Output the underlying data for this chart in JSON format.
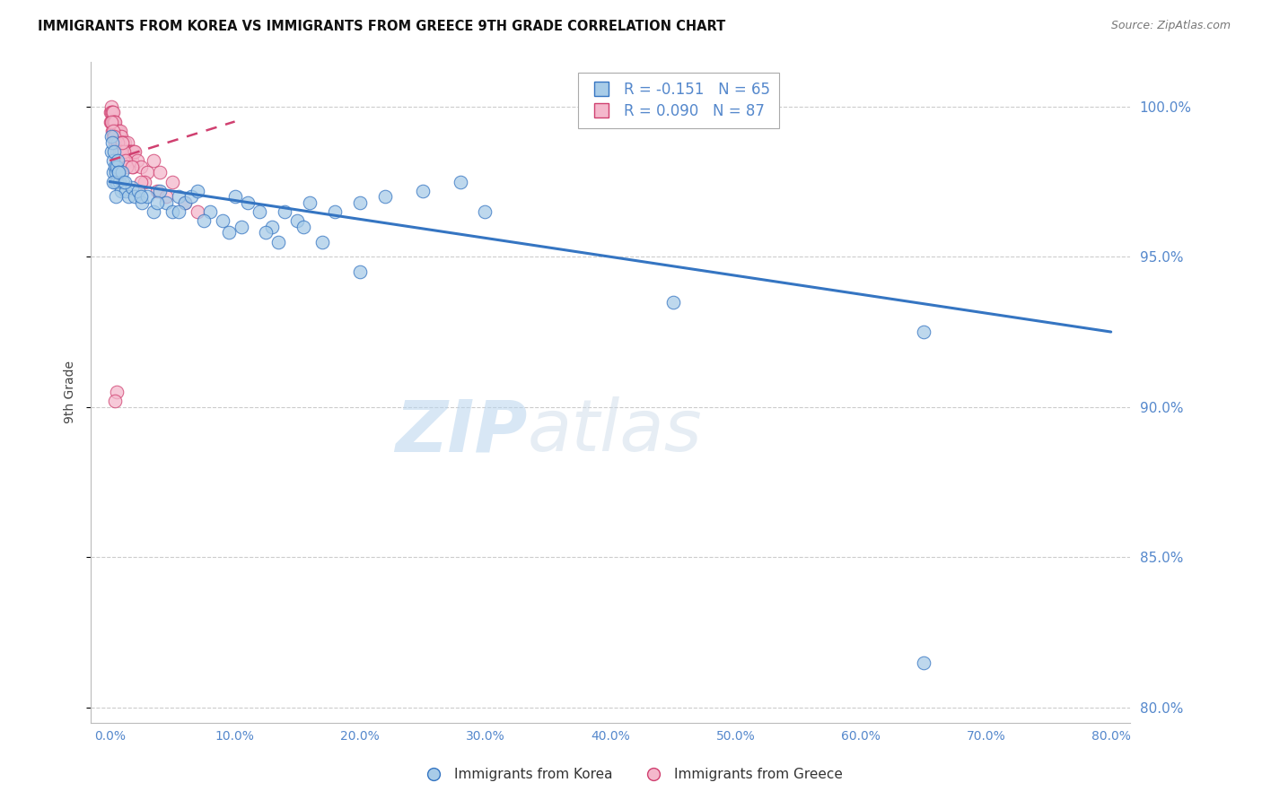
{
  "title": "IMMIGRANTS FROM KOREA VS IMMIGRANTS FROM GREECE 9TH GRADE CORRELATION CHART",
  "source": "Source: ZipAtlas.com",
  "ylabel_left": "9th Grade",
  "xlim": [
    0.0,
    80.0
  ],
  "ylim": [
    79.5,
    101.5
  ],
  "korea_R": -0.151,
  "korea_N": 65,
  "greece_R": 0.09,
  "greece_N": 87,
  "korea_color": "#a8cce8",
  "greece_color": "#f4b8cc",
  "korea_trend_color": "#3575c2",
  "greece_trend_color": "#d04070",
  "watermark_zip": "ZIP",
  "watermark_atlas": "atlas",
  "legend_korea": "R = -0.151   N = 65",
  "legend_greece": "R = 0.090   N = 87",
  "korea_x": [
    0.1,
    0.15,
    0.2,
    0.25,
    0.3,
    0.35,
    0.4,
    0.45,
    0.5,
    0.55,
    0.6,
    0.65,
    0.7,
    0.8,
    0.9,
    1.0,
    1.1,
    1.3,
    1.5,
    1.8,
    2.0,
    2.3,
    2.6,
    3.0,
    3.5,
    4.0,
    4.5,
    5.0,
    5.5,
    6.0,
    6.5,
    7.0,
    8.0,
    9.0,
    10.0,
    11.0,
    12.0,
    13.0,
    14.0,
    15.0,
    16.0,
    18.0,
    20.0,
    22.0,
    25.0,
    28.0,
    30.0,
    12.5,
    15.5,
    17.0,
    0.3,
    0.5,
    0.7,
    1.2,
    2.5,
    3.8,
    5.5,
    7.5,
    9.5,
    13.5,
    10.5,
    20.0,
    45.0,
    65.0,
    65.0
  ],
  "korea_y": [
    99.0,
    98.5,
    98.8,
    98.2,
    97.8,
    98.5,
    97.5,
    98.0,
    97.8,
    98.0,
    97.5,
    98.2,
    97.8,
    97.5,
    97.2,
    97.8,
    97.5,
    97.2,
    97.0,
    97.3,
    97.0,
    97.2,
    96.8,
    97.0,
    96.5,
    97.2,
    96.8,
    96.5,
    97.0,
    96.8,
    97.0,
    97.2,
    96.5,
    96.2,
    97.0,
    96.8,
    96.5,
    96.0,
    96.5,
    96.2,
    96.8,
    96.5,
    96.8,
    97.0,
    97.2,
    97.5,
    96.5,
    95.8,
    96.0,
    95.5,
    97.5,
    97.0,
    97.8,
    97.5,
    97.0,
    96.8,
    96.5,
    96.2,
    95.8,
    95.5,
    96.0,
    94.5,
    93.5,
    92.5,
    81.5
  ],
  "greece_x": [
    0.05,
    0.08,
    0.1,
    0.12,
    0.15,
    0.18,
    0.2,
    0.22,
    0.25,
    0.28,
    0.3,
    0.32,
    0.35,
    0.38,
    0.4,
    0.42,
    0.45,
    0.48,
    0.5,
    0.52,
    0.55,
    0.58,
    0.6,
    0.62,
    0.65,
    0.68,
    0.7,
    0.72,
    0.75,
    0.78,
    0.8,
    0.82,
    0.85,
    0.88,
    0.9,
    0.92,
    0.95,
    0.98,
    1.0,
    1.05,
    1.1,
    1.15,
    1.2,
    1.25,
    1.3,
    1.35,
    1.4,
    1.45,
    1.5,
    1.55,
    1.6,
    1.65,
    1.7,
    1.75,
    1.8,
    1.85,
    1.9,
    2.0,
    2.2,
    2.5,
    3.0,
    3.5,
    4.0,
    5.0,
    6.0,
    7.0,
    0.15,
    0.25,
    0.35,
    0.45,
    0.55,
    0.65,
    0.75,
    0.85,
    0.95,
    1.05,
    1.15,
    1.25,
    1.35,
    2.8,
    3.8,
    4.5,
    1.0,
    1.8,
    2.5,
    0.6,
    0.4
  ],
  "greece_y": [
    99.8,
    99.5,
    100.0,
    99.8,
    99.5,
    99.8,
    99.5,
    99.2,
    99.5,
    99.0,
    99.8,
    99.5,
    99.2,
    99.5,
    99.2,
    99.0,
    99.5,
    99.2,
    99.0,
    99.2,
    99.0,
    98.8,
    99.2,
    99.0,
    98.8,
    99.0,
    98.8,
    99.2,
    98.8,
    99.0,
    98.8,
    99.0,
    98.8,
    99.2,
    98.5,
    99.0,
    98.8,
    98.5,
    98.8,
    98.5,
    98.8,
    98.5,
    98.8,
    98.5,
    98.2,
    98.5,
    98.8,
    98.5,
    98.5,
    98.2,
    98.5,
    98.2,
    98.5,
    98.2,
    98.5,
    98.0,
    98.5,
    98.5,
    98.2,
    98.0,
    97.8,
    98.2,
    97.8,
    97.5,
    96.8,
    96.5,
    99.5,
    99.2,
    99.0,
    98.8,
    98.5,
    98.8,
    98.5,
    98.2,
    98.5,
    98.2,
    98.5,
    98.2,
    98.0,
    97.5,
    97.2,
    97.0,
    98.8,
    98.0,
    97.5,
    90.5,
    90.2
  ],
  "grid_color": "#cccccc",
  "axis_color": "#5588cc",
  "tick_color": "#5588cc",
  "title_color": "#111111",
  "source_color": "#777777"
}
